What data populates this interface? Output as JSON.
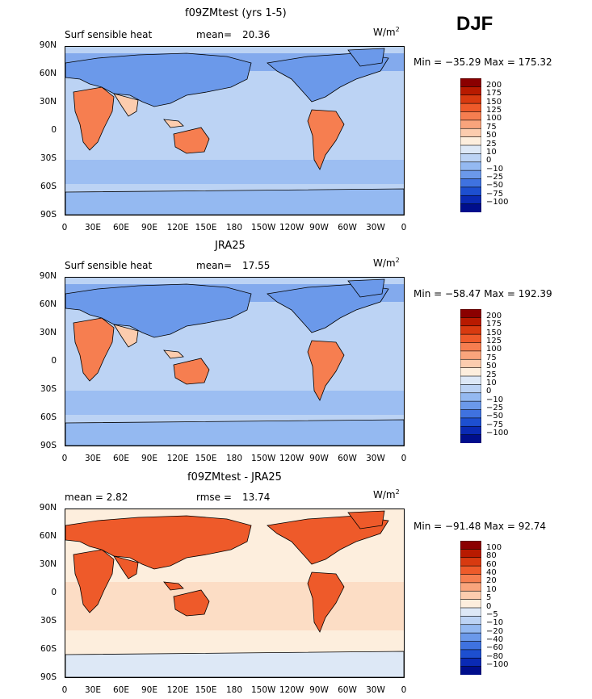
{
  "header": {
    "season": "DJF"
  },
  "units_base": "W/m",
  "units_exp": "2",
  "lat_ticks": [
    "90N",
    "60N",
    "30N",
    "0",
    "30S",
    "60S",
    "90S"
  ],
  "lon_ticks": [
    "0",
    "30E",
    "60E",
    "90E",
    "120E",
    "150E",
    "180",
    "150W",
    "120W",
    "90W",
    "60W",
    "30W",
    "0"
  ],
  "panels": [
    {
      "title": "f09ZMtest (yrs 1-5)",
      "left_text": "Surf sensible heat",
      "center_label": "mean=",
      "center_value": "20.36",
      "minmax": "Min = −35.29  Max = 175.32",
      "levels": [
        "200",
        "175",
        "150",
        "125",
        "100",
        "75",
        "50",
        "25",
        "10",
        "0",
        "−10",
        "−25",
        "−50",
        "−75",
        "−100"
      ]
    },
    {
      "title": "JRA25",
      "left_text": "Surf sensible heat",
      "center_label": "mean=",
      "center_value": "17.55",
      "minmax": "Min = −58.47  Max = 192.39",
      "levels": [
        "200",
        "175",
        "150",
        "125",
        "100",
        "75",
        "50",
        "25",
        "10",
        "0",
        "−10",
        "−25",
        "−50",
        "−75",
        "−100"
      ]
    },
    {
      "title": "f09ZMtest - JRA25",
      "left_text": "mean =     2.82",
      "center_label": "rmse =",
      "center_value": "13.74",
      "minmax": "Min = −91.48  Max =   92.74",
      "levels": [
        "100",
        "80",
        "60",
        "40",
        "20",
        "10",
        "5",
        "0",
        "−5",
        "−10",
        "−20",
        "−40",
        "−60",
        "−80",
        "−100"
      ]
    }
  ],
  "colorbar_colors": [
    "#8b0000",
    "#b81a00",
    "#d83a10",
    "#ee5a2a",
    "#f67e50",
    "#f9a47c",
    "#fcccae",
    "#fdeedd",
    "#dde8f6",
    "#bcd3f4",
    "#94b9f1",
    "#6b99ea",
    "#3f72e0",
    "#1d4fd0",
    "#0a2ab4",
    "#000e8c"
  ],
  "colors": {
    "ocean_model": "#bcd3f4",
    "ocean_diff": "#fdeedd",
    "neg_band": "#6b99ea",
    "land_pos": "#f67e50"
  }
}
